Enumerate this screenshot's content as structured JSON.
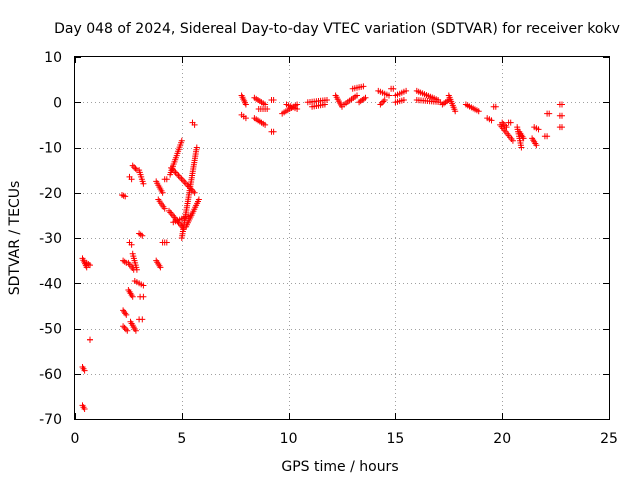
{
  "chart_data": {
    "type": "scatter",
    "title": "Day 048 of 2024, Sidereal Day-to-day VTEC variation (SDTVAR) for receiver kokv",
    "xlabel": "GPS time / hours",
    "ylabel": "SDTVAR / TECUs",
    "xlim": [
      0,
      25
    ],
    "ylim": [
      -70,
      10
    ],
    "xticks": [
      0,
      5,
      10,
      15,
      20,
      25
    ],
    "yticks": [
      -70,
      -60,
      -50,
      -40,
      -30,
      -20,
      -10,
      0,
      10
    ],
    "xtick_labels": [
      "0",
      "5",
      "10",
      "15",
      "20",
      "25"
    ],
    "ytick_labels": [
      "-70",
      "-60",
      "-50",
      "-40",
      "-30",
      "-20",
      "-10",
      "0",
      "10"
    ],
    "grid": true,
    "marker": "plus",
    "color": "#ff0000",
    "series": [
      {
        "name": "SDTVAR",
        "segments": [
          {
            "x": [
              0.35,
              0.45
            ],
            "y": [
              -58.5,
              -59.3
            ]
          },
          {
            "x": [
              0.35,
              0.45
            ],
            "y": [
              -67.0,
              -67.8
            ]
          },
          {
            "x": [
              0.35,
              0.55
            ],
            "y": [
              -34.5,
              -36.5
            ]
          },
          {
            "x": [
              0.55,
              0.7
            ],
            "y": [
              -35.5,
              -36.0
            ]
          },
          {
            "x": [
              2.2,
              2.35
            ],
            "y": [
              -20.5,
              -20.8
            ]
          },
          {
            "x": [
              2.25,
              2.4
            ],
            "y": [
              -35.0,
              -35.5
            ]
          },
          {
            "x": [
              2.25,
              2.4
            ],
            "y": [
              -46.0,
              -47.0
            ]
          },
          {
            "x": [
              2.25,
              2.45
            ],
            "y": [
              -49.5,
              -50.5
            ]
          },
          {
            "x": [
              2.5,
              2.75
            ],
            "y": [
              -35.5,
              -37.0
            ]
          },
          {
            "x": [
              2.5,
              2.7
            ],
            "y": [
              -41.5,
              -43.0
            ]
          },
          {
            "x": [
              2.55,
              2.65
            ],
            "y": [
              -31.0,
              -31.5
            ]
          },
          {
            "x": [
              2.55,
              2.65
            ],
            "y": [
              -16.5,
              -17.0
            ]
          },
          {
            "x": [
              2.6,
              2.85
            ],
            "y": [
              -48.5,
              -50.5
            ]
          },
          {
            "x": [
              2.7,
              2.9
            ],
            "y": [
              -33.5,
              -37.0
            ]
          },
          {
            "x": [
              2.7,
              2.9
            ],
            "y": [
              -14.0,
              -15.0
            ]
          },
          {
            "x": [
              2.8,
              3.2
            ],
            "y": [
              -39.5,
              -40.5
            ]
          },
          {
            "x": [
              3.0,
              3.15
            ],
            "y": [
              -29.0,
              -29.5
            ]
          },
          {
            "x": [
              3.05,
              3.2
            ],
            "y": [
              -43.0,
              -43.0
            ]
          },
          {
            "x": [
              3.0,
              3.15
            ],
            "y": [
              -48.0,
              -48.0
            ]
          },
          {
            "x": [
              3.0,
              3.2
            ],
            "y": [
              -15.0,
              -18.0
            ]
          },
          {
            "x": [
              3.8,
              4.0
            ],
            "y": [
              -35.0,
              -36.5
            ]
          },
          {
            "x": [
              3.8,
              4.1
            ],
            "y": [
              -17.5,
              -20.0
            ]
          },
          {
            "x": [
              3.9,
              4.2
            ],
            "y": [
              -21.5,
              -23.5
            ]
          },
          {
            "x": [
              4.2,
              4.3
            ],
            "y": [
              -17.0,
              -17.0
            ]
          },
          {
            "x": [
              4.1,
              4.3
            ],
            "y": [
              -31.0,
              -31.0
            ]
          },
          {
            "x": [
              4.4,
              5.1
            ],
            "y": [
              -24.0,
              -28.0
            ]
          },
          {
            "x": [
              4.45,
              5.0
            ],
            "y": [
              -16.0,
              -8.5
            ]
          },
          {
            "x": [
              4.5,
              5.6
            ],
            "y": [
              -14.5,
              -20.0
            ]
          },
          {
            "x": [
              4.6,
              5.4
            ],
            "y": [
              -26.5,
              -25.0
            ]
          },
          {
            "x": [
              5.0,
              5.7
            ],
            "y": [
              -30.0,
              -10.0
            ]
          },
          {
            "x": [
              5.2,
              5.8
            ],
            "y": [
              -27.5,
              -21.5
            ]
          },
          {
            "x": [
              5.5,
              5.6
            ],
            "y": [
              -4.5,
              -5.0
            ]
          },
          {
            "x": [
              0.7,
              0.7
            ],
            "y": [
              -52.5,
              -52.5
            ]
          },
          {
            "x": [
              7.8,
              8.0
            ],
            "y": [
              1.5,
              -0.5
            ]
          },
          {
            "x": [
              7.8,
              8.0
            ],
            "y": [
              -2.8,
              -3.5
            ]
          },
          {
            "x": [
              8.4,
              8.9
            ],
            "y": [
              1.0,
              -0.5
            ]
          },
          {
            "x": [
              8.4,
              8.9
            ],
            "y": [
              -3.5,
              -5.0
            ]
          },
          {
            "x": [
              8.6,
              9.0
            ],
            "y": [
              -1.5,
              -1.5
            ]
          },
          {
            "x": [
              9.2,
              9.3
            ],
            "y": [
              0.5,
              0.5
            ]
          },
          {
            "x": [
              9.2,
              9.3
            ],
            "y": [
              -6.5,
              -6.5
            ]
          },
          {
            "x": [
              9.7,
              10.4
            ],
            "y": [
              -2.5,
              -0.5
            ]
          },
          {
            "x": [
              9.9,
              10.4
            ],
            "y": [
              -0.5,
              -1.5
            ]
          },
          {
            "x": [
              10.9,
              11.8
            ],
            "y": [
              0.0,
              0.5
            ]
          },
          {
            "x": [
              11.1,
              11.7
            ],
            "y": [
              -1.0,
              -0.5
            ]
          },
          {
            "x": [
              12.2,
              12.5
            ],
            "y": [
              1.5,
              -1.0
            ]
          },
          {
            "x": [
              12.6,
              13.2
            ],
            "y": [
              -0.5,
              1.5
            ]
          },
          {
            "x": [
              13.0,
              13.5
            ],
            "y": [
              3.0,
              3.5
            ]
          },
          {
            "x": [
              13.3,
              13.6
            ],
            "y": [
              0.0,
              1.0
            ]
          },
          {
            "x": [
              14.2,
              14.7
            ],
            "y": [
              2.5,
              1.5
            ]
          },
          {
            "x": [
              14.3,
              14.5
            ],
            "y": [
              -0.5,
              0.5
            ]
          },
          {
            "x": [
              14.8,
              14.9
            ],
            "y": [
              3.0,
              3.0
            ]
          },
          {
            "x": [
              15.0,
              15.5
            ],
            "y": [
              1.5,
              2.5
            ]
          },
          {
            "x": [
              15.0,
              15.4
            ],
            "y": [
              0.0,
              0.5
            ]
          },
          {
            "x": [
              16.0,
              17.0
            ],
            "y": [
              2.5,
              0.5
            ]
          },
          {
            "x": [
              16.0,
              17.1
            ],
            "y": [
              0.5,
              0.0
            ]
          },
          {
            "x": [
              17.2,
              17.5
            ],
            "y": [
              -0.5,
              0.5
            ]
          },
          {
            "x": [
              17.5,
              17.8
            ],
            "y": [
              1.5,
              -2.0
            ]
          },
          {
            "x": [
              18.3,
              18.9
            ],
            "y": [
              -0.5,
              -2.0
            ]
          },
          {
            "x": [
              19.3,
              19.5
            ],
            "y": [
              -3.5,
              -4.0
            ]
          },
          {
            "x": [
              19.6,
              19.7
            ],
            "y": [
              -1.0,
              -1.0
            ]
          },
          {
            "x": [
              19.9,
              20.5
            ],
            "y": [
              -5.0,
              -8.5
            ]
          },
          {
            "x": [
              20.0,
              20.2
            ],
            "y": [
              -4.5,
              -5.5
            ]
          },
          {
            "x": [
              20.3,
              20.4
            ],
            "y": [
              -4.5,
              -4.5
            ]
          },
          {
            "x": [
              20.7,
              20.9
            ],
            "y": [
              -5.5,
              -10.0
            ]
          },
          {
            "x": [
              20.8,
              21.0
            ],
            "y": [
              -6.5,
              -8.0
            ]
          },
          {
            "x": [
              21.4,
              21.6
            ],
            "y": [
              -8.0,
              -9.5
            ]
          },
          {
            "x": [
              21.5,
              21.7
            ],
            "y": [
              -5.5,
              -6.0
            ]
          },
          {
            "x": [
              22.0,
              22.1
            ],
            "y": [
              -7.5,
              -7.5
            ]
          },
          {
            "x": [
              22.1,
              22.2
            ],
            "y": [
              -2.5,
              -2.5
            ]
          },
          {
            "x": [
              22.7,
              22.8
            ],
            "y": [
              -0.5,
              -0.5
            ]
          },
          {
            "x": [
              22.7,
              22.8
            ],
            "y": [
              -3.0,
              -3.0
            ]
          },
          {
            "x": [
              22.7,
              22.8
            ],
            "y": [
              -5.5,
              -5.5
            ]
          }
        ]
      }
    ]
  }
}
